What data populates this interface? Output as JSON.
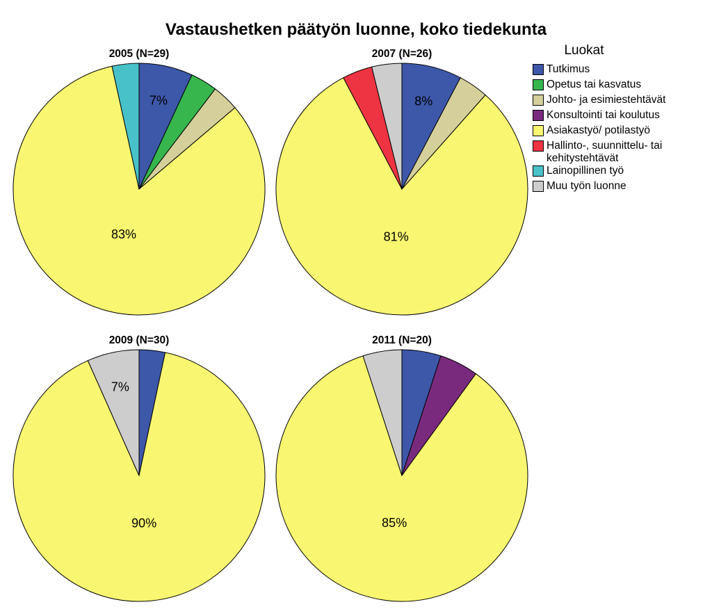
{
  "title": "Vastaushetken päätyön luonne, koko tiedekunta",
  "legend": {
    "title": "Luokat",
    "items": [
      {
        "name": "Tutkimus",
        "color": "#3d57a9"
      },
      {
        "name": "Opetus tai kasvatus",
        "color": "#36b64d"
      },
      {
        "name": "Johto- ja esimiestehtävät",
        "color": "#d5d09b"
      },
      {
        "name": "Konsultointi tai koulutus",
        "color": "#7a2a7c"
      },
      {
        "name": "Asiakastyö/ potilastyö",
        "color": "#f9f771"
      },
      {
        "name": "Hallinto-, suunnittelu- tai kehitystehtävät",
        "color": "#ee3442"
      },
      {
        "name": "Lainopillinen työ",
        "color": "#48c2c8"
      },
      {
        "name": "Muu työn luonne",
        "color": "#cdcdcd"
      }
    ]
  },
  "chart_data": [
    {
      "type": "pie",
      "title": "2005 (N=29)",
      "labels": [
        "Tutkimus",
        "Opetus tai kasvatus",
        "Johto- ja esimiestehtävät",
        "Asiakastyö/ potilastyö",
        "Lainopillinen työ"
      ],
      "values": [
        6.9,
        3.45,
        3.45,
        82.75,
        3.45
      ],
      "data_labels": [
        "7%",
        "",
        "",
        "83%",
        ""
      ]
    },
    {
      "type": "pie",
      "title": "2007 (N=26)",
      "labels": [
        "Tutkimus",
        "Johto- ja esimiestehtävät",
        "Asiakastyö/ potilastyö",
        "Hallinto-, suunnittelu- tai kehitystehtävät",
        "Muu työn luonne"
      ],
      "values": [
        7.7,
        3.85,
        80.75,
        3.85,
        3.85
      ],
      "data_labels": [
        "8%",
        "",
        "81%",
        "",
        ""
      ]
    },
    {
      "type": "pie",
      "title": "2009 (N=30)",
      "labels": [
        "Tutkimus",
        "Asiakastyö/ potilastyö",
        "Muu työn luonne"
      ],
      "values": [
        3.33,
        90.0,
        6.67
      ],
      "data_labels": [
        "",
        "90%",
        "7%"
      ]
    },
    {
      "type": "pie",
      "title": "2011 (N=20)",
      "labels": [
        "Tutkimus",
        "Konsultointi tai koulutus",
        "Asiakastyö/ potilastyö",
        "Muu työn luonne"
      ],
      "values": [
        5,
        5,
        85,
        5
      ],
      "data_labels": [
        "",
        "",
        "85%",
        ""
      ]
    }
  ]
}
